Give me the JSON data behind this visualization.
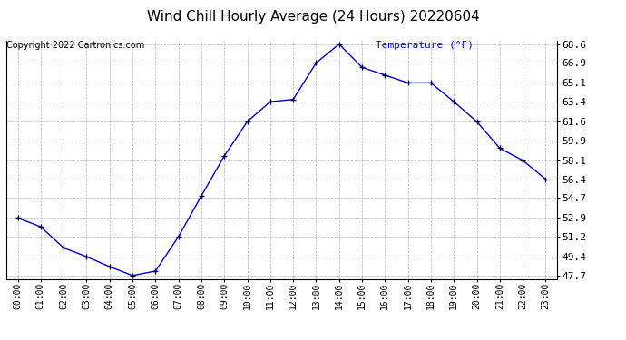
{
  "title": "Wind Chill Hourly Average (24 Hours) 20220604",
  "copyright_text": "Copyright 2022 Cartronics.com",
  "ylabel_text": "Temperature (°F)",
  "hours": [
    "00:00",
    "01:00",
    "02:00",
    "03:00",
    "04:00",
    "05:00",
    "06:00",
    "07:00",
    "08:00",
    "09:00",
    "10:00",
    "11:00",
    "12:00",
    "13:00",
    "14:00",
    "15:00",
    "16:00",
    "17:00",
    "18:00",
    "19:00",
    "20:00",
    "21:00",
    "22:00",
    "23:00"
  ],
  "values": [
    52.9,
    52.1,
    50.2,
    49.4,
    48.5,
    47.7,
    48.1,
    51.2,
    54.9,
    58.5,
    61.6,
    63.4,
    63.6,
    66.9,
    68.6,
    66.5,
    65.8,
    65.1,
    65.1,
    63.4,
    61.6,
    59.2,
    58.1,
    56.4
  ],
  "ylim_min": 47.7,
  "ylim_max": 68.6,
  "yticks": [
    47.7,
    49.4,
    51.2,
    52.9,
    54.7,
    56.4,
    58.1,
    59.9,
    61.6,
    63.4,
    65.1,
    66.9,
    68.6
  ],
  "line_color": "#0000cc",
  "marker_color": "#000033",
  "title_fontsize": 11,
  "copyright_fontsize": 7,
  "ylabel_color": "#0000cc",
  "ylabel_fontsize": 8,
  "ytick_fontsize": 8,
  "xtick_fontsize": 7,
  "background_color": "#ffffff",
  "grid_color": "#aaaaaa",
  "border_color": "#000000"
}
